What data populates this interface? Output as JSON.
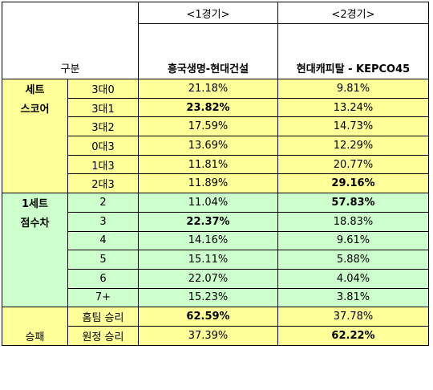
{
  "header": {
    "gubun": "구분",
    "game1": "<1경기>",
    "game2": "<2경기>",
    "match1": "흥국생명-현대건설",
    "match2": "현대캐피탈 - KEPCO45"
  },
  "sections": [
    {
      "key": "set_score",
      "label_lines": [
        "세트",
        "스코어"
      ],
      "color": "#ffff99",
      "rows": [
        {
          "label": "3대0",
          "g1": "21.18%",
          "g2": "9.81%",
          "bold1": false,
          "bold2": false
        },
        {
          "label": "3대1",
          "g1": "23.82%",
          "g2": "13.24%",
          "bold1": true,
          "bold2": false
        },
        {
          "label": "3대2",
          "g1": "17.59%",
          "g2": "14.73%",
          "bold1": false,
          "bold2": false
        },
        {
          "label": "0대3",
          "g1": "13.69%",
          "g2": "12.29%",
          "bold1": false,
          "bold2": false
        },
        {
          "label": "1대3",
          "g1": "11.81%",
          "g2": "20.77%",
          "bold1": false,
          "bold2": false
        },
        {
          "label": "2대3",
          "g1": "11.89%",
          "g2": "29.16%",
          "bold1": false,
          "bold2": true
        }
      ]
    },
    {
      "key": "point_diff",
      "label_lines": [
        "1세트",
        "점수차"
      ],
      "color": "#ccffcc",
      "rows": [
        {
          "label": "2",
          "g1": "11.04%",
          "g2": "57.83%",
          "bold1": false,
          "bold2": true
        },
        {
          "label": "3",
          "g1": "22.37%",
          "g2": "18.83%",
          "bold1": true,
          "bold2": false
        },
        {
          "label": "4",
          "g1": "14.16%",
          "g2": "9.61%",
          "bold1": false,
          "bold2": false
        },
        {
          "label": "5",
          "g1": "15.11%",
          "g2": "5.88%",
          "bold1": false,
          "bold2": false
        },
        {
          "label": "6",
          "g1": "22.07%",
          "g2": "4.04%",
          "bold1": false,
          "bold2": false
        },
        {
          "label": "7+",
          "g1": "15.23%",
          "g2": "3.81%",
          "bold1": false,
          "bold2": false
        }
      ]
    },
    {
      "key": "win_loss",
      "label_lines": [
        "승패"
      ],
      "color": "#ffff99",
      "rows": [
        {
          "label": "홈팀 승리",
          "g1": "62.59%",
          "g2": "37.78%",
          "bold1": true,
          "bold2": false
        },
        {
          "label": "원정 승리",
          "g1": "37.39%",
          "g2": "62.22%",
          "bold1": false,
          "bold2": true
        }
      ]
    }
  ]
}
